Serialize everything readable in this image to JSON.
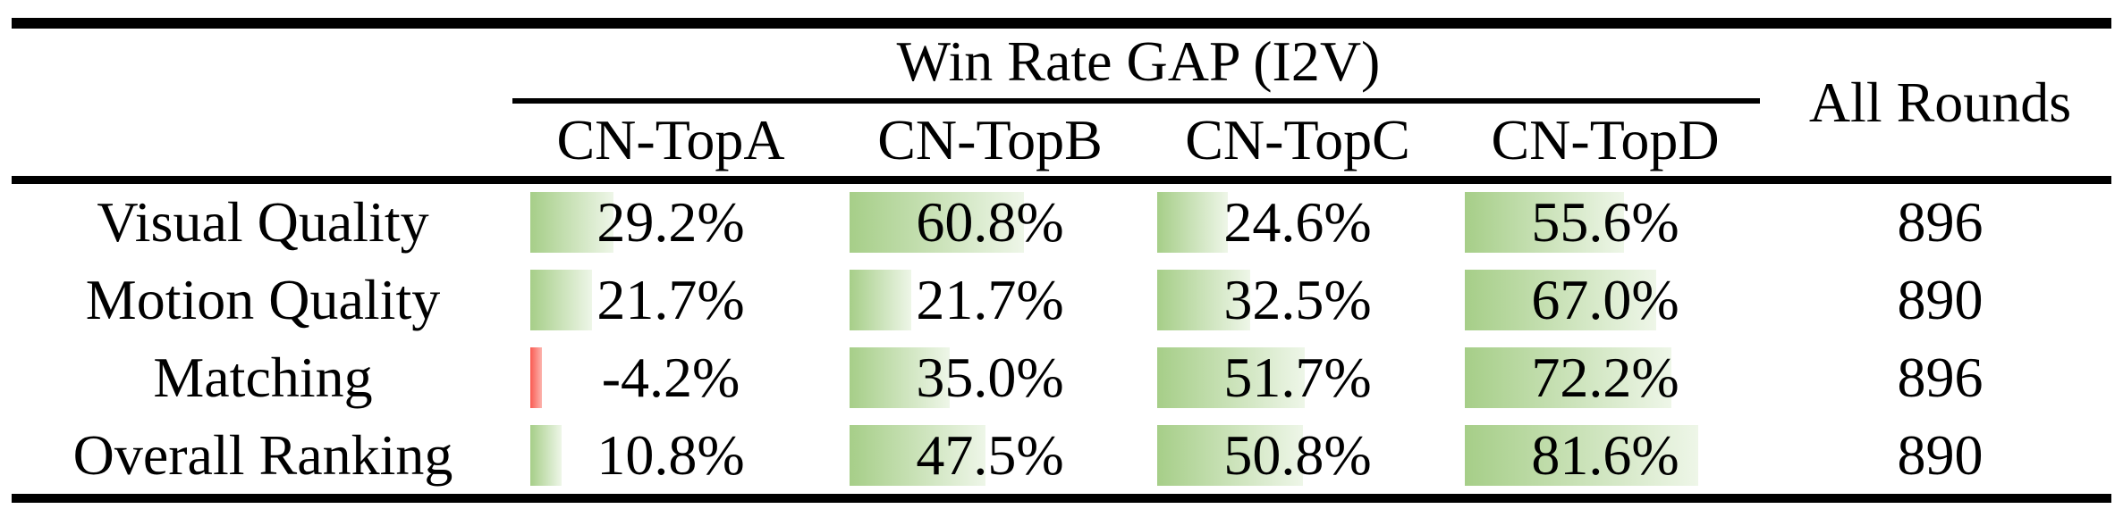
{
  "table": {
    "span_header": "Win Rate GAP (I2V)",
    "all_rounds_header": "All Rounds",
    "columns": [
      "CN-TopA",
      "CN-TopB",
      "CN-TopC",
      "CN-TopD"
    ],
    "rows": [
      {
        "label": "Visual Quality",
        "values": [
          29.2,
          60.8,
          24.6,
          55.6
        ],
        "value_labels": [
          "29.2%",
          "60.8%",
          "24.6%",
          "55.6%"
        ],
        "all_rounds": "896"
      },
      {
        "label": "Motion Quality",
        "values": [
          21.7,
          21.7,
          32.5,
          67.0
        ],
        "value_labels": [
          "21.7%",
          "21.7%",
          "32.5%",
          "67.0%"
        ],
        "all_rounds": "890"
      },
      {
        "label": "Matching",
        "values": [
          -4.2,
          35.0,
          51.7,
          72.2
        ],
        "value_labels": [
          "-4.2%",
          "35.0%",
          "51.7%",
          "72.2%"
        ],
        "all_rounds": "896"
      },
      {
        "label": "Overall Ranking",
        "values": [
          10.8,
          47.5,
          50.8,
          81.6
        ],
        "value_labels": [
          "10.8%",
          "47.5%",
          "50.8%",
          "81.6%"
        ],
        "all_rounds": "890"
      }
    ],
    "colors": {
      "bar_positive": "#a6ce88",
      "bar_positive_fade": "#eef6e8",
      "bar_negative": "#fa5b52",
      "bar_negative_fade": "#fcb4ae"
    }
  },
  "chart_data": {
    "type": "table",
    "title": "Win Rate GAP (I2V)",
    "categories": [
      "Visual Quality",
      "Motion Quality",
      "Matching",
      "Overall Ranking"
    ],
    "series": [
      {
        "name": "CN-TopA",
        "values": [
          29.2,
          21.7,
          -4.2,
          10.8
        ]
      },
      {
        "name": "CN-TopB",
        "values": [
          60.8,
          21.7,
          35.0,
          47.5
        ]
      },
      {
        "name": "CN-TopC",
        "values": [
          24.6,
          32.5,
          51.7,
          50.8
        ]
      },
      {
        "name": "CN-TopD",
        "values": [
          55.6,
          67.0,
          72.2,
          81.6
        ]
      }
    ],
    "all_rounds": [
      896,
      890,
      896,
      890
    ],
    "unit": "%",
    "bar_scale_range": [
      0,
      100
    ],
    "notes": "in-cell data bars; green gradient for positive values, red for negative"
  }
}
